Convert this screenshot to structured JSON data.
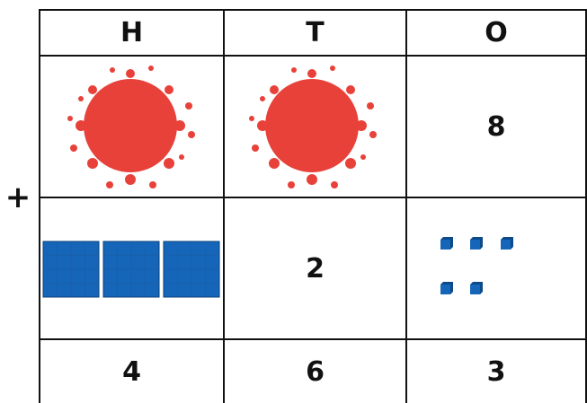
{
  "header": [
    "H",
    "T",
    "O"
  ],
  "operator": "+",
  "rows": {
    "first": {
      "ones": 8
    },
    "second": {
      "tens": 2
    },
    "total": [
      4,
      6,
      3
    ]
  }
}
